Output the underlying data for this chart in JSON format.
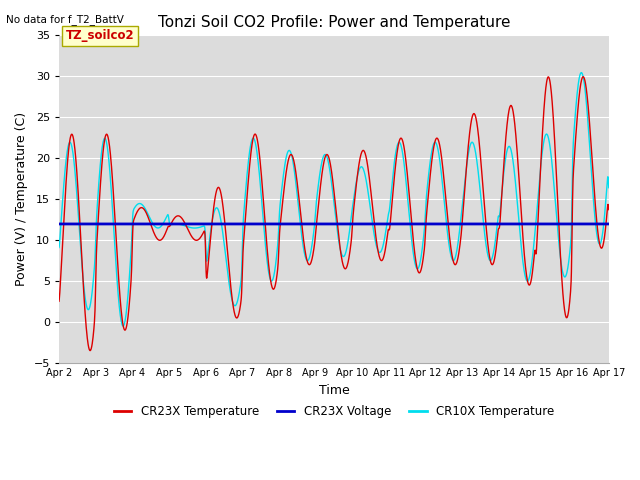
{
  "title": "Tonzi Soil CO2 Profile: Power and Temperature",
  "subtitle": "No data for f_T2_BattV",
  "xlabel": "Time",
  "ylabel": "Power (V) / Temperature (C)",
  "ylim": [
    -5,
    35
  ],
  "yticks": [
    -5,
    0,
    5,
    10,
    15,
    20,
    25,
    30,
    35
  ],
  "xtick_labels": [
    "Apr 2",
    "Apr 3",
    "Apr 4",
    "Apr 5",
    "Apr 6",
    "Apr 7",
    "Apr 8",
    "Apr 9",
    "Apr 10",
    "Apr 11",
    "Apr 12",
    "Apr 13",
    "Apr 14",
    "Apr 15",
    "Apr 16",
    "Apr 17"
  ],
  "annotation_label": "TZ_soilco2",
  "voltage_value": 12.0,
  "plot_bg_color": "#dcdcdc",
  "cr23x_color": "#dd0000",
  "cr10x_color": "#00ddee",
  "voltage_color": "#0000cc",
  "legend_entries": [
    "CR23X Temperature",
    "CR23X Voltage",
    "CR10X Temperature"
  ],
  "title_fontsize": 11,
  "label_fontsize": 9,
  "tick_fontsize": 8
}
